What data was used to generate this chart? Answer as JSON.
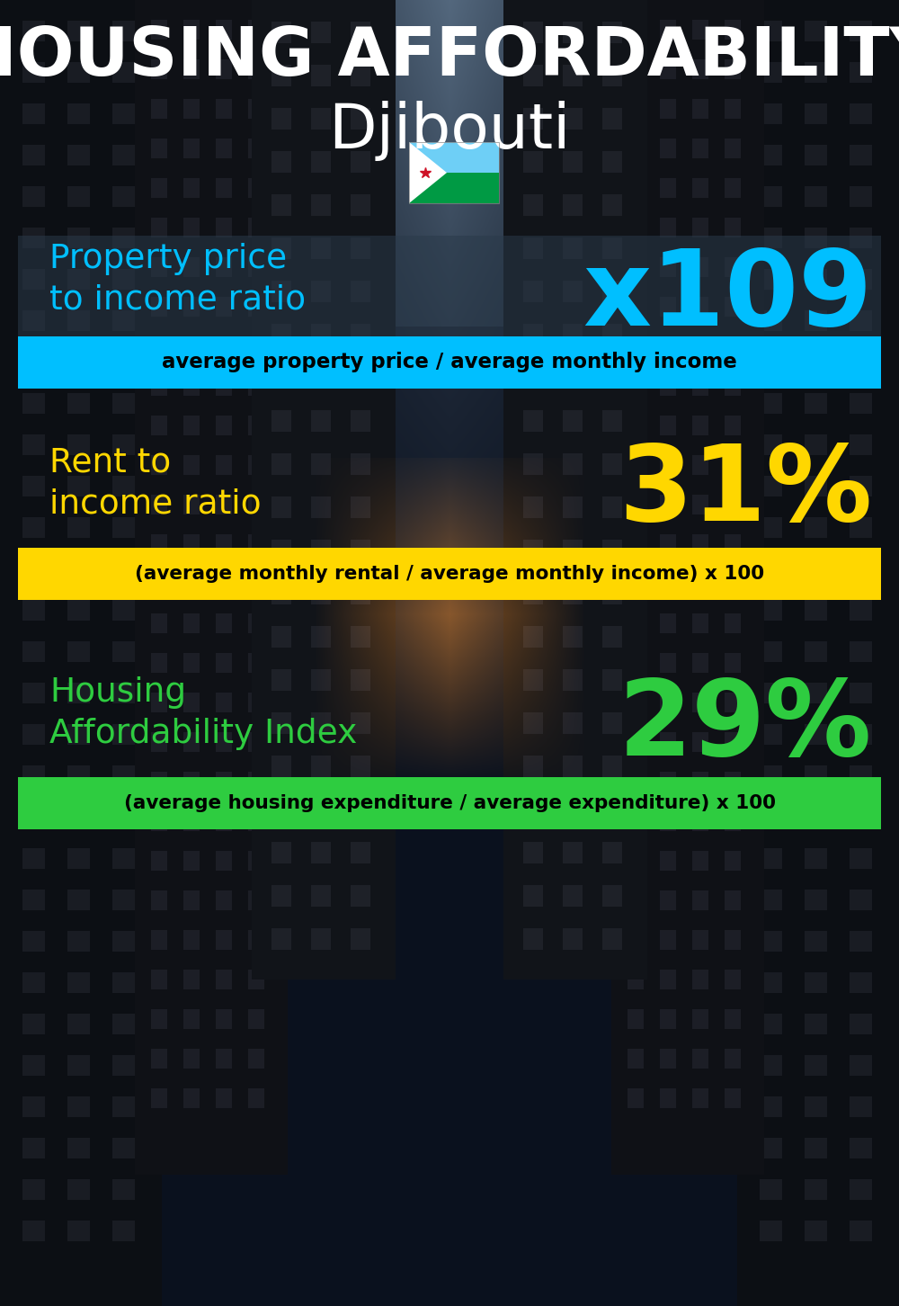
{
  "title_line1": "HOUSING AFFORDABILITY",
  "title_line2": "Djibouti",
  "section1_label": "Property price\nto income ratio",
  "section1_value": "x109",
  "section1_label_color": "#00BFFF",
  "section1_value_color": "#00BFFF",
  "section1_formula": "average property price / average monthly income",
  "section1_formula_bg": "#00BFFF",
  "section2_label": "Rent to\nincome ratio",
  "section2_value": "31%",
  "section2_label_color": "#FFD700",
  "section2_value_color": "#FFD700",
  "section2_formula": "(average monthly rental / average monthly income) x 100",
  "section2_formula_bg": "#FFD700",
  "section3_label": "Housing\nAffordability Index",
  "section3_value": "29%",
  "section3_label_color": "#2ECC40",
  "section3_value_color": "#2ECC40",
  "section3_formula": "(average housing expenditure / average expenditure) x 100",
  "section3_formula_bg": "#2ECC40",
  "bg_color": "#060c14",
  "title_color": "#FFFFFF",
  "formula_text_color": "#000000",
  "overlay_color": "#1a2a3a"
}
